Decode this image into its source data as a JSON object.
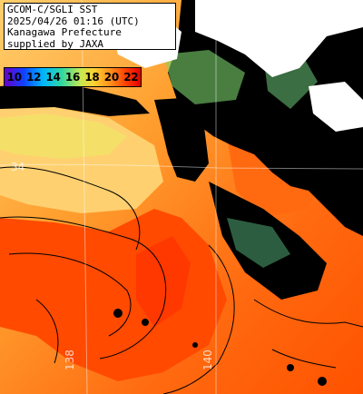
{
  "header": {
    "line1": "GCOM-C/SGLI SST",
    "line2": "2025/04/26 01:16 (UTC)",
    "line3": "Kanagawa Prefecture",
    "line4": "supplied by JAXA"
  },
  "legend": {
    "ticks": [
      "10",
      "12",
      "14",
      "16",
      "18",
      "20",
      "22"
    ],
    "colors": [
      "#6a00c8",
      "#1040ff",
      "#00b4ff",
      "#30d8a0",
      "#c8e850",
      "#ffd030",
      "#ff8c1a",
      "#ff3a00",
      "#e00000"
    ]
  },
  "grid_labels": {
    "lat": "34",
    "lon_left": "138",
    "lon_right": "140"
  },
  "palette": {
    "land": "#000000",
    "cloud": "#ffffff",
    "sea_cool": "#ffd27a",
    "sea_warm": "#ff8a1a",
    "sea_hot": "#ff4a00",
    "contour": "#000000"
  }
}
